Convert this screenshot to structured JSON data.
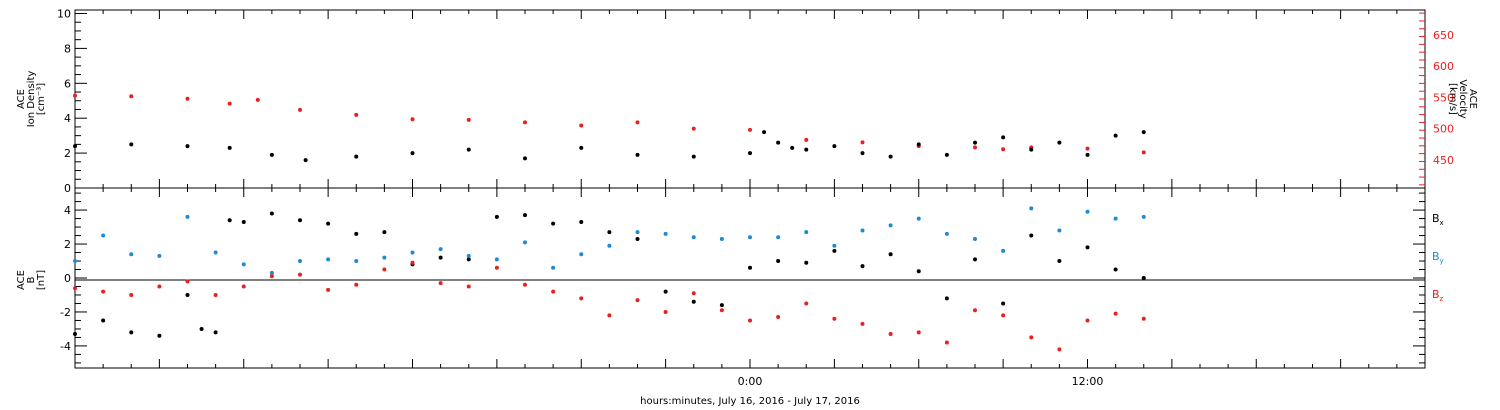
{
  "figure": {
    "xlabel": "hours:minutes, July 16, 2016 - July 17, 2016"
  },
  "chart_data": [
    {
      "type": "scatter",
      "panel": "top",
      "ylabel_left": [
        "ACE",
        "Ion Density",
        "[cm⁻³]"
      ],
      "ylabel_right": [
        "ACE",
        "Velocity",
        "[km/s]"
      ],
      "x_axis": {
        "units": "hours relative to 00:00 July 17, 2016",
        "range": [
          -24,
          24
        ],
        "tick_labels": [
          {
            "x": 0,
            "label": "0:00"
          },
          {
            "x": 12,
            "label": "12:00"
          }
        ],
        "major_tick_every_hours": 3,
        "minor_tick_every_hours": 1
      },
      "left_axis": {
        "range": [
          0,
          10.2
        ],
        "tick_values": [
          0,
          2,
          4,
          6,
          8,
          10
        ],
        "color": "#000000"
      },
      "right_axis": {
        "range": [
          405,
          690
        ],
        "tick_values": [
          450,
          500,
          550,
          600,
          650
        ],
        "color": "#e8201f"
      },
      "grid": false,
      "series": [
        {
          "axis": "left",
          "color": "#000000",
          "x": [
            -24,
            -22,
            -20,
            -18.5,
            -17,
            -15.8,
            -14,
            -12,
            -10,
            -8,
            -6,
            -4,
            -2,
            0,
            0.5,
            1,
            1.5,
            2,
            3,
            4,
            5,
            6,
            7,
            8,
            9,
            10,
            11,
            12,
            13,
            14
          ],
          "y": [
            2.4,
            2.5,
            2.4,
            2.3,
            1.9,
            1.6,
            1.8,
            2.0,
            2.2,
            1.7,
            2.3,
            1.9,
            1.8,
            2.0,
            3.2,
            2.6,
            2.3,
            2.2,
            2.4,
            2.0,
            1.8,
            2.5,
            1.9,
            2.6,
            2.9,
            2.2,
            2.6,
            1.9,
            3.0,
            3.2
          ]
        },
        {
          "axis": "right",
          "color": "#e8201f",
          "x": [
            -24,
            -22,
            -20,
            -18.5,
            -17.5,
            -16,
            -14,
            -12,
            -10,
            -8,
            -6,
            -4,
            -2,
            0,
            2,
            4,
            6,
            8,
            9,
            10,
            12,
            14
          ],
          "y": [
            553,
            552,
            548,
            540,
            546,
            530,
            522,
            515,
            514,
            510,
            505,
            510,
            500,
            498,
            482,
            478,
            472,
            470,
            467,
            470,
            468,
            462
          ]
        }
      ]
    },
    {
      "type": "scatter",
      "panel": "bottom",
      "ylabel_left": [
        "ACE",
        "B",
        "[nT]"
      ],
      "x_axis": {
        "units": "hours relative to 00:00 July 17, 2016",
        "range": [
          -24,
          24
        ],
        "tick_labels": [
          {
            "x": 0,
            "label": "0:00"
          },
          {
            "x": 12,
            "label": "12:00"
          }
        ]
      },
      "y_axis": {
        "range": [
          -5.3,
          5.3
        ],
        "tick_values": [
          -4,
          -2,
          0,
          2,
          4
        ]
      },
      "zero_line": true,
      "grid": false,
      "series": [
        {
          "name": "Bx",
          "color": "#000000",
          "x": [
            -24,
            -23,
            -22,
            -21,
            -20,
            -19.5,
            -19,
            -18.5,
            -18,
            -17,
            -16,
            -15,
            -14,
            -13,
            -12,
            -11,
            -10,
            -9,
            -8,
            -7,
            -6,
            -5,
            -4,
            -3,
            -2,
            -1,
            0,
            1,
            2,
            3,
            4,
            5,
            6,
            7,
            8,
            9,
            10,
            11,
            12,
            13,
            14
          ],
          "y": [
            -3.3,
            -2.5,
            -3.2,
            -3.4,
            -1.0,
            -3.0,
            -3.2,
            3.4,
            3.3,
            3.8,
            3.4,
            3.2,
            2.6,
            2.7,
            0.8,
            1.2,
            1.1,
            3.6,
            3.7,
            3.2,
            3.3,
            2.7,
            2.3,
            -0.8,
            -1.4,
            -1.6,
            0.6,
            1.0,
            0.9,
            1.6,
            0.7,
            1.4,
            0.4,
            -1.2,
            1.1,
            -1.5,
            2.5,
            1.0,
            1.8,
            0.5,
            0.0
          ]
        },
        {
          "name": "By",
          "color": "#1c8ad4",
          "x": [
            -24,
            -23,
            -22,
            -21,
            -20,
            -19,
            -18,
            -17,
            -16,
            -15,
            -14,
            -13,
            -12,
            -11,
            -10,
            -9,
            -8,
            -7,
            -6,
            -5,
            -4,
            -3,
            -2,
            -1,
            0,
            1,
            2,
            3,
            4,
            5,
            6,
            7,
            8,
            9,
            10,
            11,
            12,
            13,
            14
          ],
          "y": [
            1.0,
            2.5,
            1.4,
            1.3,
            3.6,
            1.5,
            0.8,
            0.3,
            1.0,
            1.1,
            1.0,
            1.2,
            1.5,
            1.7,
            1.3,
            1.1,
            2.1,
            0.6,
            1.4,
            1.9,
            2.7,
            2.6,
            2.4,
            2.3,
            2.4,
            2.4,
            2.7,
            1.9,
            2.8,
            3.1,
            3.5,
            2.6,
            2.3,
            1.6,
            4.1,
            2.8,
            3.9,
            3.5,
            3.6
          ]
        },
        {
          "name": "Bz",
          "color": "#e8201f",
          "x": [
            -24,
            -23,
            -22,
            -21,
            -20,
            -19,
            -18,
            -17,
            -16,
            -15,
            -14,
            -13,
            -12,
            -11,
            -10,
            -9,
            -8,
            -7,
            -6,
            -5,
            -4,
            -3,
            -2,
            -1,
            0,
            1,
            2,
            3,
            4,
            5,
            6,
            7,
            8,
            9,
            10,
            11,
            12,
            13,
            14
          ],
          "y": [
            -0.6,
            -0.8,
            -1.0,
            -0.5,
            -0.2,
            -1.0,
            -0.5,
            0.1,
            0.2,
            -0.7,
            -0.4,
            0.5,
            0.9,
            -0.3,
            -0.5,
            0.6,
            -0.4,
            -0.8,
            -1.2,
            -2.2,
            -1.3,
            -2.0,
            -0.9,
            -1.9,
            -2.5,
            -2.3,
            -1.5,
            -2.4,
            -2.7,
            -3.3,
            -3.2,
            -3.8,
            -1.9,
            -2.2,
            -3.5,
            -4.2,
            -2.5,
            -2.1,
            -2.4
          ]
        }
      ]
    }
  ]
}
